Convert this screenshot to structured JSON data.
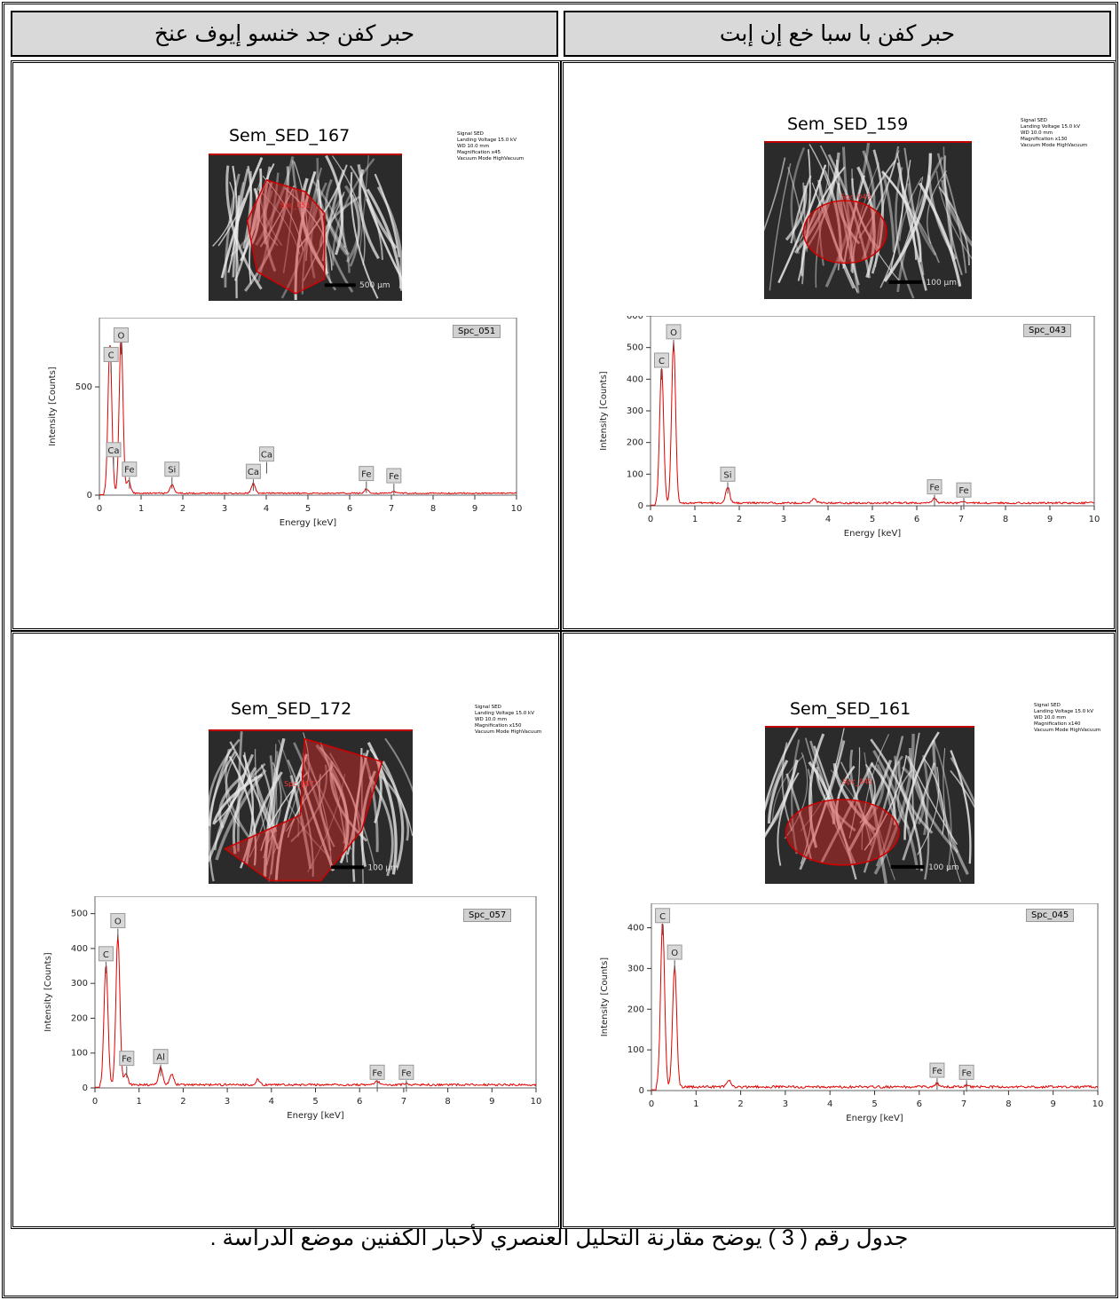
{
  "headers": {
    "left": "حبر كفن جد خنسو إيوف عنخ",
    "right": "حبر كفن با سبا خع إن إبت"
  },
  "panels": [
    {
      "id": "p1",
      "sem_title": "Sem_SED_167",
      "spectrum": "Spc_051",
      "meta": [
        "Signal SED",
        "Landing Voltage 15.0 kV",
        "WD 10.0 mm",
        "Magnification x45",
        "Vacuum Mode HighVacuum"
      ],
      "scalebar": "500 µm",
      "roi_label": "Spc_051"
    },
    {
      "id": "p2",
      "sem_title": "Sem_SED_159",
      "spectrum": "Spc_043",
      "meta": [
        "Signal SED",
        "Landing Voltage 15.0 kV",
        "WD 10.0 mm",
        "Magnification x130",
        "Vacuum Mode HighVacuum"
      ],
      "scalebar": "100 µm",
      "roi_label": "Spc_043"
    },
    {
      "id": "p3",
      "sem_title": "Sem_SED_172",
      "spectrum": "Spc_057",
      "meta": [
        "Signal SED",
        "Landing Voltage 15.0 kV",
        "WD 10.0 mm",
        "Magnification x150",
        "Vacuum Mode HighVacuum"
      ],
      "scalebar": "100 µm",
      "roi_label": "Spc_057"
    },
    {
      "id": "p4",
      "sem_title": "Sem_SED_161",
      "spectrum": "Spc_045",
      "meta": [
        "Signal SED",
        "Landing Voltage 15.0 kV",
        "WD 10.0 mm",
        "Magnification x140",
        "Vacuum Mode HighVacuum"
      ],
      "scalebar": "100 µm",
      "roi_label": "Spc_045"
    }
  ],
  "chart_data": [
    {
      "type": "line",
      "name": "Spc_051",
      "xlabel": "Energy [keV]",
      "ylabel": "Intensity [Counts]",
      "xlim": [
        0,
        10
      ],
      "ylim": [
        0,
        820
      ],
      "yticks": [
        0,
        500
      ],
      "line_color": "#e00000",
      "peaks": [
        {
          "x": 0.25,
          "y": 650
        },
        {
          "x": 0.52,
          "y": 740
        },
        {
          "x": 0.28,
          "y": 55
        },
        {
          "x": 0.7,
          "y": 60
        },
        {
          "x": 1.74,
          "y": 40
        },
        {
          "x": 3.69,
          "y": 45
        },
        {
          "x": 6.4,
          "y": 20
        },
        {
          "x": 7.06,
          "y": 8
        }
      ],
      "labels": [
        {
          "el": "C",
          "x": 0.28,
          "y": 650
        },
        {
          "el": "O",
          "x": 0.52,
          "y": 740
        },
        {
          "el": "Ca",
          "x": 0.34,
          "y": 210
        },
        {
          "el": "Fe",
          "x": 0.72,
          "y": 120
        },
        {
          "el": "Si",
          "x": 1.74,
          "y": 120
        },
        {
          "el": "Ca",
          "x": 3.69,
          "y": 110
        },
        {
          "el": "Ca",
          "x": 4.01,
          "y": 190
        },
        {
          "el": "Fe",
          "x": 6.4,
          "y": 100
        },
        {
          "el": "Fe",
          "x": 7.06,
          "y": 90
        }
      ]
    },
    {
      "type": "line",
      "name": "Spc_043",
      "xlabel": "Energy [keV]",
      "ylabel": "Intensity [Counts]",
      "xlim": [
        0,
        10
      ],
      "ylim": [
        0,
        600
      ],
      "yticks": [
        0,
        100,
        200,
        300,
        400,
        500,
        600
      ],
      "line_color": "#e00000",
      "peaks": [
        {
          "x": 0.25,
          "y": 430
        },
        {
          "x": 0.52,
          "y": 510
        },
        {
          "x": 1.74,
          "y": 50
        },
        {
          "x": 3.69,
          "y": 15
        },
        {
          "x": 6.4,
          "y": 15
        },
        {
          "x": 7.06,
          "y": 5
        }
      ],
      "labels": [
        {
          "el": "C",
          "x": 0.25,
          "y": 460
        },
        {
          "el": "O",
          "x": 0.52,
          "y": 550
        },
        {
          "el": "Si",
          "x": 1.74,
          "y": 100
        },
        {
          "el": "Fe",
          "x": 6.4,
          "y": 60
        },
        {
          "el": "Fe",
          "x": 7.06,
          "y": 50
        }
      ]
    },
    {
      "type": "line",
      "name": "Spc_057",
      "xlabel": "Energy [keV]",
      "ylabel": "Intensity [Counts]",
      "xlim": [
        0,
        10
      ],
      "ylim": [
        0,
        550
      ],
      "yticks": [
        0,
        100,
        200,
        300,
        400,
        500
      ],
      "line_color": "#e00000",
      "peaks": [
        {
          "x": 0.25,
          "y": 345
        },
        {
          "x": 0.52,
          "y": 430
        },
        {
          "x": 0.7,
          "y": 30
        },
        {
          "x": 1.49,
          "y": 50
        },
        {
          "x": 1.74,
          "y": 30
        },
        {
          "x": 3.69,
          "y": 15
        },
        {
          "x": 6.4,
          "y": 10
        },
        {
          "x": 7.06,
          "y": 5
        }
      ],
      "labels": [
        {
          "el": "C",
          "x": 0.25,
          "y": 385
        },
        {
          "el": "O",
          "x": 0.52,
          "y": 480
        },
        {
          "el": "Fe",
          "x": 0.72,
          "y": 85
        },
        {
          "el": "Al",
          "x": 1.49,
          "y": 90
        },
        {
          "el": "Fe",
          "x": 6.4,
          "y": 45
        },
        {
          "el": "Fe",
          "x": 7.06,
          "y": 45
        }
      ]
    },
    {
      "type": "line",
      "name": "Spc_045",
      "xlabel": "Energy [keV]",
      "ylabel": "Intensity [Counts]",
      "xlim": [
        0,
        10
      ],
      "ylim": [
        0,
        460
      ],
      "yticks": [
        0,
        100,
        200,
        300,
        400
      ],
      "line_color": "#e00000",
      "peaks": [
        {
          "x": 0.25,
          "y": 410
        },
        {
          "x": 0.52,
          "y": 300
        },
        {
          "x": 1.74,
          "y": 15
        },
        {
          "x": 6.4,
          "y": 8
        },
        {
          "x": 7.06,
          "y": 5
        }
      ],
      "labels": [
        {
          "el": "C",
          "x": 0.25,
          "y": 430
        },
        {
          "el": "O",
          "x": 0.52,
          "y": 340
        },
        {
          "el": "Fe",
          "x": 6.4,
          "y": 50
        },
        {
          "el": "Fe",
          "x": 7.06,
          "y": 45
        }
      ]
    }
  ],
  "caption": "جدول رقم ( 3 ) يوضح مقارنة التحليل العنصري لأحبار الكفنين موضع الدراسة ."
}
